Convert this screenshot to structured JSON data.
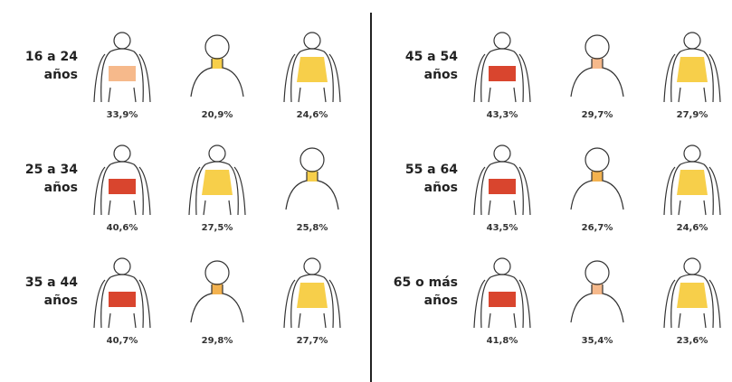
{
  "groups": [
    {
      "label": [
        "16 a 24",
        "años"
      ],
      "items": [
        "33,9%",
        "20,9%",
        "24,6%"
      ]
    },
    {
      "label": [
        "25 a 34",
        "años"
      ],
      "items": [
        "40,6%",
        "27,5%",
        "25,8%"
      ]
    },
    {
      "label": [
        "35 a 44",
        "años"
      ],
      "items": [
        "40,7%",
        "29,8%",
        "27,7%"
      ]
    },
    {
      "label": [
        "45 a 54",
        "años"
      ],
      "items": [
        "43,3%",
        "29,7%",
        "27,9%"
      ]
    },
    {
      "label": [
        "55 a 64",
        "años"
      ],
      "items": [
        "43,5%",
        "26,7%",
        "24,6%"
      ]
    },
    {
      "label": [
        "65 o más",
        "años"
      ],
      "items": [
        "41,8%",
        "35,4%",
        "23,6%"
      ]
    }
  ]
}
